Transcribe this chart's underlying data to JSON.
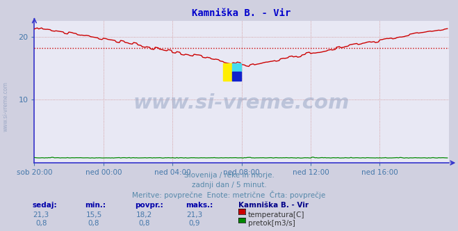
{
  "title": "Kamniška B. - Vir",
  "title_color": "#0000cc",
  "bg_color": "#d0d0e0",
  "plot_bg_color": "#e8e8f4",
  "grid_color": "#cc8888",
  "axis_color": "#3333cc",
  "y_axis_color": "#3333cc",
  "tick_color": "#4477aa",
  "watermark_text": "www.si-vreme.com",
  "watermark_color": "#8899bb",
  "watermark_alpha": 0.45,
  "side_text_color": "#8899bb",
  "subtitle_lines": [
    "Slovenija / reke in morje.",
    "zadnji dan / 5 minut.",
    "Meritve: povprečne  Enote: metrične  Črta: povprečje"
  ],
  "subtitle_color": "#5588aa",
  "x_tick_labels": [
    "sob 20:00",
    "ned 00:00",
    "ned 04:00",
    "ned 08:00",
    "ned 12:00",
    "ned 16:00"
  ],
  "x_tick_positions": [
    0,
    48,
    96,
    144,
    192,
    240
  ],
  "x_total_points": 288,
  "y_ticks": [
    10,
    20
  ],
  "ylim": [
    0,
    22.5
  ],
  "xlim": [
    0,
    288
  ],
  "temp_color": "#cc0000",
  "flow_color": "#008800",
  "avg_line_color": "#cc0000",
  "avg_line_value": 18.2,
  "table_headers": [
    "sedaj:",
    "min.:",
    "povpr.:",
    "maks.:"
  ],
  "station_label": "Kamniška B. - Vir",
  "table_row1_vals": [
    "21,3",
    "15,5",
    "18,2",
    "21,3"
  ],
  "table_row1_label": "temperatura[C]",
  "table_row1_color": "#cc0000",
  "table_row2_vals": [
    "0,8",
    "0,8",
    "0,8",
    "0,9"
  ],
  "table_row2_label": "pretok[m3/s]",
  "table_row2_color": "#008800",
  "table_val_color": "#4477aa",
  "table_hdr_color": "#0000aa",
  "station_color": "#000088"
}
